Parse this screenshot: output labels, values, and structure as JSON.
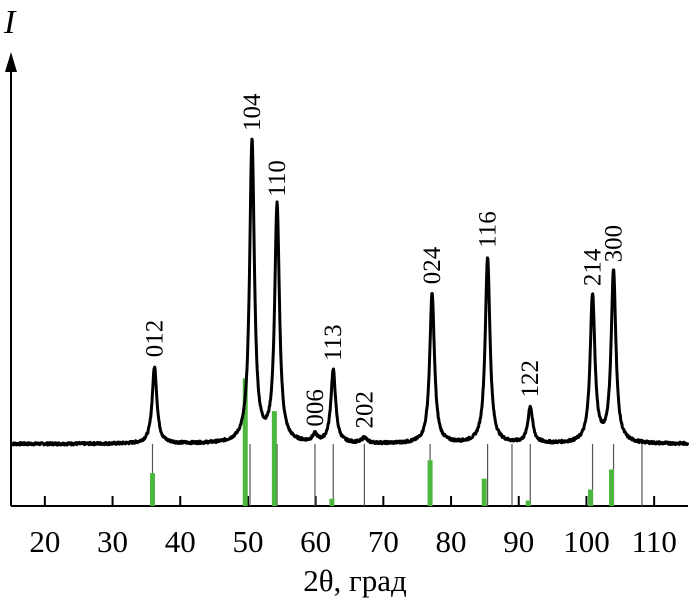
{
  "chart_data": {
    "type": "line",
    "xlabel": "2θ, град",
    "ylabel": "I",
    "xlim": [
      15,
      115
    ],
    "ylim": [
      0,
      100
    ],
    "x_ticks": [
      20,
      30,
      40,
      50,
      60,
      70,
      80,
      90,
      100,
      110
    ],
    "colors": {
      "pattern": "#000000",
      "reference_bars": "#4cb63e",
      "drop_lines": "#555555"
    },
    "baseline_intensity": 17,
    "peaks": [
      {
        "hkl": "012",
        "x": 36.2,
        "y": 38
      },
      {
        "hkl": "104",
        "x": 50.6,
        "y": 100
      },
      {
        "hkl": "110",
        "x": 54.3,
        "y": 82
      },
      {
        "hkl": "006",
        "x": 59.9,
        "y": 19
      },
      {
        "hkl": "113",
        "x": 62.6,
        "y": 37
      },
      {
        "hkl": "202",
        "x": 67.2,
        "y": 18.5
      },
      {
        "hkl": "024",
        "x": 77.2,
        "y": 58
      },
      {
        "hkl": "116",
        "x": 85.4,
        "y": 68
      },
      {
        "hkl": "122",
        "x": 91.7,
        "y": 27
      },
      {
        "hkl": "214",
        "x": 100.9,
        "y": 57.5
      },
      {
        "hkl": "300",
        "x": 104.0,
        "y": 64
      }
    ],
    "reference_bars": [
      {
        "x": 35.9,
        "y": 9
      },
      {
        "x": 49.6,
        "y": 35
      },
      {
        "x": 53.9,
        "y": 26
      },
      {
        "x": 62.4,
        "y": 2
      },
      {
        "x": 76.9,
        "y": 12.5
      },
      {
        "x": 84.9,
        "y": 7.5
      },
      {
        "x": 91.4,
        "y": 1.5
      },
      {
        "x": 100.6,
        "y": 4.5
      },
      {
        "x": 103.7,
        "y": 10
      }
    ],
    "drop_lines": [
      35.9,
      49.6,
      50.3,
      53.9,
      54.3,
      59.9,
      62.6,
      67.2,
      76.9,
      85.4,
      89.0,
      91.7,
      100.9,
      104.0,
      108.2
    ]
  }
}
